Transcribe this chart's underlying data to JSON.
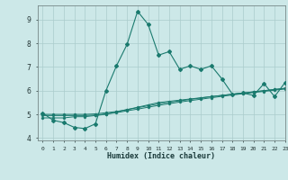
{
  "xlabel": "Humidex (Indice chaleur)",
  "ylabel": "",
  "xlim": [
    -0.5,
    23
  ],
  "ylim": [
    3.9,
    9.6
  ],
  "yticks": [
    4,
    5,
    6,
    7,
    8,
    9
  ],
  "xticks": [
    0,
    1,
    2,
    3,
    4,
    5,
    6,
    7,
    8,
    9,
    10,
    11,
    12,
    13,
    14,
    15,
    16,
    17,
    18,
    19,
    20,
    21,
    22,
    23
  ],
  "bg_color": "#cce8e8",
  "line_color": "#1a7a6e",
  "grid_color": "#aacccc",
  "series1_x": [
    0,
    1,
    2,
    3,
    4,
    5,
    6,
    7,
    8,
    9,
    10,
    11,
    12,
    13,
    14,
    15,
    16,
    17,
    18,
    19,
    20,
    21,
    22,
    23
  ],
  "series1_y": [
    5.05,
    4.75,
    4.65,
    4.45,
    4.4,
    4.6,
    6.0,
    7.05,
    7.95,
    9.35,
    8.8,
    7.5,
    7.65,
    6.9,
    7.05,
    6.9,
    7.05,
    6.5,
    5.85,
    5.9,
    5.8,
    6.3,
    5.75,
    6.35
  ],
  "series2_x": [
    0,
    1,
    2,
    3,
    4,
    5,
    6,
    7,
    8,
    9,
    10,
    11,
    12,
    13,
    14,
    15,
    16,
    17,
    18,
    19,
    20,
    21,
    22,
    23
  ],
  "series2_y": [
    4.85,
    4.85,
    4.85,
    4.9,
    4.9,
    4.95,
    5.0,
    5.1,
    5.2,
    5.3,
    5.4,
    5.5,
    5.55,
    5.6,
    5.65,
    5.7,
    5.75,
    5.8,
    5.85,
    5.9,
    5.95,
    6.0,
    6.05,
    6.1
  ],
  "series3_x": [
    0,
    1,
    2,
    3,
    4,
    5,
    6,
    7,
    8,
    9,
    10,
    11,
    12,
    13,
    14,
    15,
    16,
    17,
    18,
    19,
    20,
    21,
    22,
    23
  ],
  "series3_y": [
    4.95,
    4.95,
    4.95,
    4.95,
    4.95,
    4.97,
    5.02,
    5.07,
    5.15,
    5.22,
    5.3,
    5.38,
    5.45,
    5.52,
    5.58,
    5.64,
    5.7,
    5.76,
    5.82,
    5.87,
    5.92,
    5.97,
    6.02,
    6.07
  ],
  "series4_x": [
    0,
    1,
    2,
    3,
    4,
    5,
    6,
    7,
    8,
    9,
    10,
    11,
    12,
    13,
    14,
    15,
    16,
    17,
    18,
    19,
    20,
    21,
    22,
    23
  ],
  "series4_y": [
    5.0,
    5.0,
    5.0,
    5.0,
    5.0,
    5.02,
    5.07,
    5.12,
    5.2,
    5.28,
    5.36,
    5.44,
    5.51,
    5.57,
    5.63,
    5.69,
    5.75,
    5.8,
    5.85,
    5.9,
    5.95,
    6.0,
    6.05,
    6.1
  ]
}
